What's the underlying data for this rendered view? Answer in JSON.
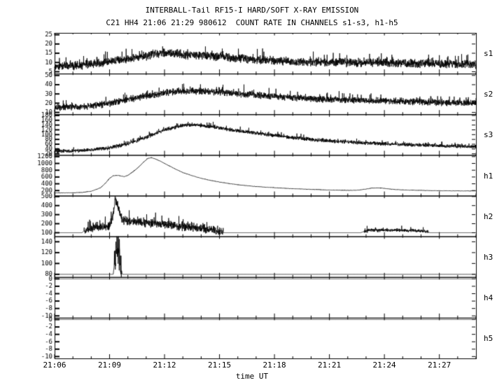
{
  "chart_data": {
    "type": "line",
    "title": "INTERBALL-Tail RF15-I HARD/SOFT X-RAY EMISSION",
    "subtitle": "C21 HH4 21:06 21:29 980612  COUNT RATE IN CHANNELS s1-s3, h1-h5",
    "xlabel": "time UT",
    "x_ticks": [
      "21:06",
      "21:09",
      "21:12",
      "21:15",
      "21:18",
      "21:21",
      "21:24",
      "21:27"
    ],
    "x_tick_minutes": [
      0,
      3,
      6,
      9,
      12,
      15,
      18,
      21
    ],
    "t_range": [
      0,
      23
    ],
    "grid": false,
    "legend_position": "right-of-panels",
    "panels": [
      {
        "label": "s1",
        "ylim": [
          4,
          26
        ],
        "yticks": [
          5,
          10,
          15,
          20,
          25
        ],
        "noise": 2.6,
        "keypoints": [
          [
            0,
            8
          ],
          [
            1,
            8.3
          ],
          [
            2,
            9
          ],
          [
            3,
            10.5
          ],
          [
            4,
            12
          ],
          [
            5,
            13.5
          ],
          [
            5.5,
            14.8
          ],
          [
            6,
            15.2
          ],
          [
            7,
            14.2
          ],
          [
            8,
            13.8
          ],
          [
            9,
            13
          ],
          [
            10,
            12.2
          ],
          [
            11,
            11.5
          ],
          [
            12,
            11
          ],
          [
            13,
            10.6
          ],
          [
            14,
            10.3
          ],
          [
            15,
            10
          ],
          [
            16,
            10
          ],
          [
            17,
            9.8
          ],
          [
            18,
            10
          ],
          [
            19,
            9.6
          ],
          [
            20,
            9.4
          ],
          [
            21,
            9.2
          ],
          [
            22,
            9
          ],
          [
            23,
            9
          ]
        ]
      },
      {
        "label": "s2",
        "ylim": [
          8,
          52
        ],
        "yticks": [
          10,
          20,
          30,
          40,
          50
        ],
        "noise": 4.2,
        "keypoints": [
          [
            0,
            15
          ],
          [
            1,
            16
          ],
          [
            2,
            17
          ],
          [
            3,
            20
          ],
          [
            4,
            24
          ],
          [
            5,
            28
          ],
          [
            6,
            31
          ],
          [
            7,
            33
          ],
          [
            8,
            33
          ],
          [
            9,
            32
          ],
          [
            10,
            30
          ],
          [
            11,
            29
          ],
          [
            12,
            27
          ],
          [
            13,
            26
          ],
          [
            14,
            25
          ],
          [
            15,
            24
          ],
          [
            16,
            23.5
          ],
          [
            17,
            23
          ],
          [
            18,
            22.5
          ],
          [
            19,
            22
          ],
          [
            20,
            21.5
          ],
          [
            21,
            21
          ],
          [
            22,
            20.5
          ],
          [
            23,
            20
          ]
        ]
      },
      {
        "label": "s3",
        "ylim": [
          15,
          185
        ],
        "yticks": [
          20,
          40,
          60,
          80,
          100,
          120,
          140,
          160,
          180
        ],
        "noise": 9,
        "keypoints": [
          [
            0,
            30
          ],
          [
            1,
            32
          ],
          [
            2,
            36
          ],
          [
            3,
            45
          ],
          [
            4,
            62
          ],
          [
            5,
            88
          ],
          [
            5.5,
            105
          ],
          [
            6,
            120
          ],
          [
            6.5,
            130
          ],
          [
            7,
            138
          ],
          [
            7.5,
            140
          ],
          [
            8,
            138
          ],
          [
            8.5,
            134
          ],
          [
            9,
            128
          ],
          [
            9.5,
            122
          ],
          [
            10,
            116
          ],
          [
            11,
            106
          ],
          [
            12,
            97
          ],
          [
            13,
            88
          ],
          [
            14,
            80
          ],
          [
            15,
            74
          ],
          [
            16,
            69
          ],
          [
            17,
            65
          ],
          [
            18,
            62
          ],
          [
            19,
            59
          ],
          [
            20,
            56
          ],
          [
            21,
            54
          ],
          [
            22,
            52
          ],
          [
            23,
            50
          ]
        ]
      },
      {
        "label": "h1",
        "ylim": [
          50,
          1250
        ],
        "yticks": [
          200,
          400,
          600,
          800,
          1000,
          1200
        ],
        "noise": 7,
        "keypoints": [
          [
            0,
            130
          ],
          [
            1,
            135
          ],
          [
            1.5,
            145
          ],
          [
            2,
            180
          ],
          [
            2.5,
            280
          ],
          [
            2.8,
            430
          ],
          [
            3,
            560
          ],
          [
            3.2,
            640
          ],
          [
            3.5,
            645
          ],
          [
            3.8,
            610
          ],
          [
            4,
            650
          ],
          [
            4.3,
            760
          ],
          [
            4.6,
            900
          ],
          [
            4.9,
            1060
          ],
          [
            5.1,
            1150
          ],
          [
            5.3,
            1170
          ],
          [
            5.5,
            1130
          ],
          [
            5.8,
            1060
          ],
          [
            6,
            1000
          ],
          [
            6.5,
            860
          ],
          [
            7,
            730
          ],
          [
            7.5,
            640
          ],
          [
            8,
            560
          ],
          [
            8.5,
            500
          ],
          [
            9,
            450
          ],
          [
            9.5,
            410
          ],
          [
            10,
            370
          ],
          [
            10.5,
            345
          ],
          [
            11,
            320
          ],
          [
            11.5,
            300
          ],
          [
            12,
            285
          ],
          [
            12.5,
            270
          ],
          [
            13,
            255
          ],
          [
            13.5,
            245
          ],
          [
            14,
            235
          ],
          [
            14.5,
            225
          ],
          [
            15,
            215
          ],
          [
            15.5,
            210
          ],
          [
            16,
            205
          ],
          [
            16.3,
            205
          ],
          [
            16.6,
            215
          ],
          [
            17,
            245
          ],
          [
            17.3,
            270
          ],
          [
            17.6,
            280
          ],
          [
            18,
            265
          ],
          [
            18.3,
            245
          ],
          [
            18.6,
            230
          ],
          [
            19,
            220
          ],
          [
            19.5,
            210
          ],
          [
            20,
            205
          ],
          [
            21,
            195
          ],
          [
            22,
            190
          ],
          [
            23,
            188
          ]
        ]
      },
      {
        "label": "h2",
        "ylim": [
          60,
          510
        ],
        "yticks": [
          100,
          200,
          300,
          400,
          500
        ],
        "noise": 0,
        "noise_ranges": [
          [
            1.6,
            9.2,
            55
          ],
          [
            16.9,
            20.4,
            22
          ]
        ],
        "keypoints": [
          [
            0,
            100
          ],
          [
            1.5,
            100
          ],
          [
            1.6,
            120
          ],
          [
            2,
            150
          ],
          [
            2.5,
            160
          ],
          [
            3,
            180
          ],
          [
            3.2,
            300
          ],
          [
            3.3,
            470
          ],
          [
            3.45,
            400
          ],
          [
            3.6,
            280
          ],
          [
            3.8,
            230
          ],
          [
            4.2,
            225
          ],
          [
            4.6,
            215
          ],
          [
            5,
            210
          ],
          [
            5.5,
            200
          ],
          [
            6,
            190
          ],
          [
            6.5,
            180
          ],
          [
            7,
            170
          ],
          [
            7.5,
            160
          ],
          [
            8,
            150
          ],
          [
            8.5,
            135
          ],
          [
            8.8,
            125
          ],
          [
            9,
            120
          ],
          [
            9.2,
            100
          ],
          [
            16.7,
            100
          ],
          [
            16.9,
            115
          ],
          [
            17.2,
            125
          ],
          [
            18,
            128
          ],
          [
            19,
            126
          ],
          [
            20,
            122
          ],
          [
            20.3,
            115
          ],
          [
            20.5,
            100
          ],
          [
            23,
            100
          ]
        ]
      },
      {
        "label": "h3",
        "ylim": [
          75,
          150
        ],
        "yticks": [
          80,
          100,
          120,
          140
        ],
        "noise": 0,
        "noise_ranges": [
          [
            3.25,
            3.65,
            30
          ]
        ],
        "keypoints": [
          [
            0,
            80
          ],
          [
            3.2,
            80
          ],
          [
            3.3,
            110
          ],
          [
            3.4,
            135
          ],
          [
            3.5,
            120
          ],
          [
            3.6,
            95
          ],
          [
            3.7,
            80
          ],
          [
            23,
            80
          ]
        ]
      },
      {
        "label": "h4",
        "ylim": [
          -10.5,
          0.5
        ],
        "yticks": [
          0,
          -2,
          -4,
          -6,
          -8,
          -10
        ],
        "noise": 0,
        "keypoints": [
          [
            0,
            0
          ],
          [
            23,
            0
          ]
        ]
      },
      {
        "label": "h5",
        "ylim": [
          -10.5,
          0.5
        ],
        "yticks": [
          0,
          -2,
          -4,
          -6,
          -8,
          -10
        ],
        "noise": 0,
        "keypoints": [
          [
            0,
            0
          ],
          [
            23,
            0
          ]
        ]
      }
    ]
  }
}
